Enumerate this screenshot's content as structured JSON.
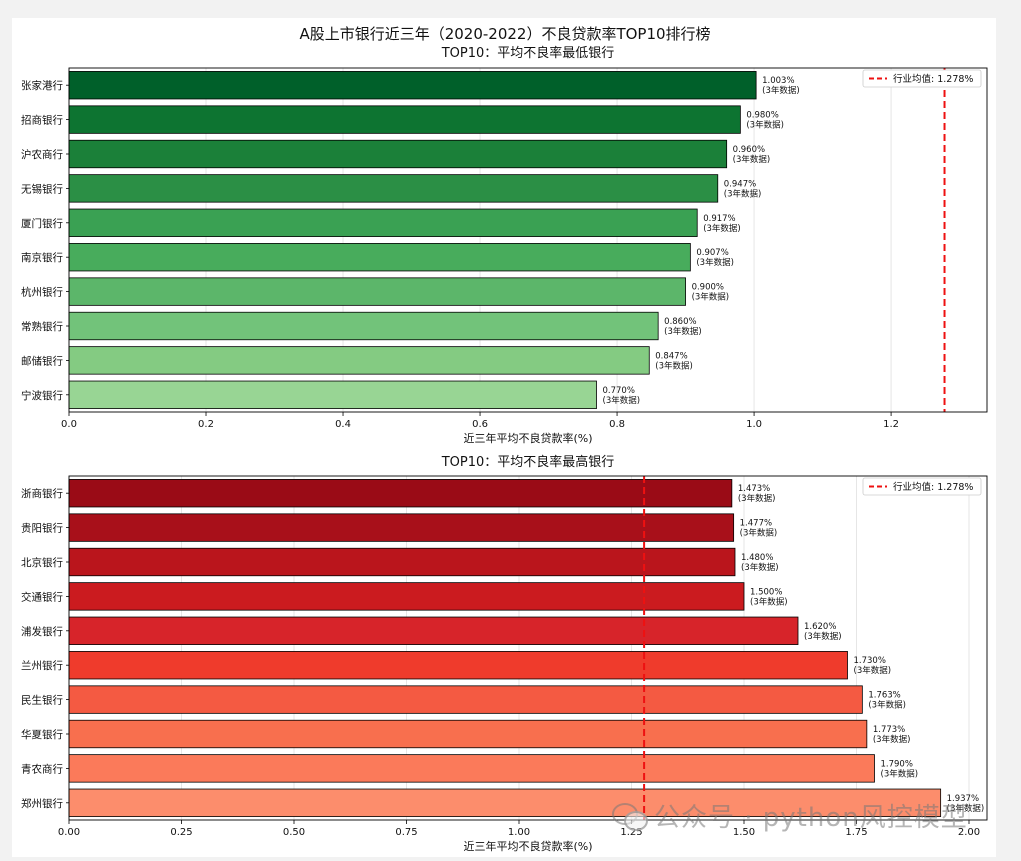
{
  "figure": {
    "suptitle": "A股上市银行近三年（2020-2022）不良贷款率TOP10排行榜"
  },
  "watermark": {
    "text": "公众号 · python风控模型",
    "icon": "wechat-icon"
  },
  "chart_data": [
    {
      "type": "bar",
      "orientation": "horizontal",
      "title": "TOP10：平均不良率最低银行",
      "xlabel": "近三年平均不良贷款率(%)",
      "ylabel": "",
      "xlim": [
        0,
        1.34
      ],
      "xticks": [
        0.0,
        0.2,
        0.4,
        0.6,
        0.8,
        1.0,
        1.2
      ],
      "xtick_labels": [
        "0.0",
        "0.2",
        "0.4",
        "0.6",
        "0.8",
        "1.0",
        "1.2"
      ],
      "grid": "x",
      "categories": [
        "张家港行",
        "招商银行",
        "沪农商行",
        "无锡银行",
        "厦门银行",
        "南京银行",
        "杭州银行",
        "常熟银行",
        "邮储银行",
        "宁波银行"
      ],
      "values": [
        1.003,
        0.98,
        0.96,
        0.947,
        0.917,
        0.907,
        0.9,
        0.86,
        0.847,
        0.77
      ],
      "value_labels": [
        "1.003%",
        "0.980%",
        "0.960%",
        "0.947%",
        "0.917%",
        "0.907%",
        "0.900%",
        "0.860%",
        "0.847%",
        "0.770%"
      ],
      "sub_label": "(3年数据)",
      "colors": [
        "#00602a",
        "#0d7431",
        "#1b8039",
        "#2b8f45",
        "#3aa153",
        "#48ac5c",
        "#5cb66a",
        "#72c37a",
        "#84cb82",
        "#98d594"
      ],
      "reference_line": {
        "label": "行业均值: 1.278%",
        "value": 1.278,
        "color": "#ee1111",
        "style": "dashed"
      },
      "legend": "top-right"
    },
    {
      "type": "bar",
      "orientation": "horizontal",
      "title": "TOP10：平均不良率最高银行",
      "xlabel": "近三年平均不良贷款率(%)",
      "ylabel": "",
      "xlim": [
        0,
        2.04
      ],
      "xticks": [
        0.0,
        0.25,
        0.5,
        0.75,
        1.0,
        1.25,
        1.5,
        1.75,
        2.0
      ],
      "xtick_labels": [
        "0.00",
        "0.25",
        "0.50",
        "0.75",
        "1.00",
        "1.25",
        "1.50",
        "1.75",
        "2.00"
      ],
      "grid": "x",
      "categories": [
        "浙商银行",
        "贵阳银行",
        "北京银行",
        "交通银行",
        "浦发银行",
        "兰州银行",
        "民生银行",
        "华夏银行",
        "青农商行",
        "郑州银行"
      ],
      "values": [
        1.473,
        1.477,
        1.48,
        1.5,
        1.62,
        1.73,
        1.763,
        1.773,
        1.79,
        1.937
      ],
      "value_labels": [
        "1.473%",
        "1.477%",
        "1.480%",
        "1.500%",
        "1.620%",
        "1.730%",
        "1.763%",
        "1.773%",
        "1.790%",
        "1.937%"
      ],
      "sub_label": "(3年数据)",
      "colors": [
        "#9a0b16",
        "#a8101a",
        "#ba151c",
        "#cb1b1f",
        "#d7242a",
        "#ef3b2c",
        "#f45a42",
        "#f86f4e",
        "#fb7a5a",
        "#fc8d6c"
      ],
      "reference_line": {
        "label": "行业均值: 1.278%",
        "value": 1.278,
        "color": "#ee1111",
        "style": "dashed"
      },
      "legend": "top-right"
    }
  ]
}
